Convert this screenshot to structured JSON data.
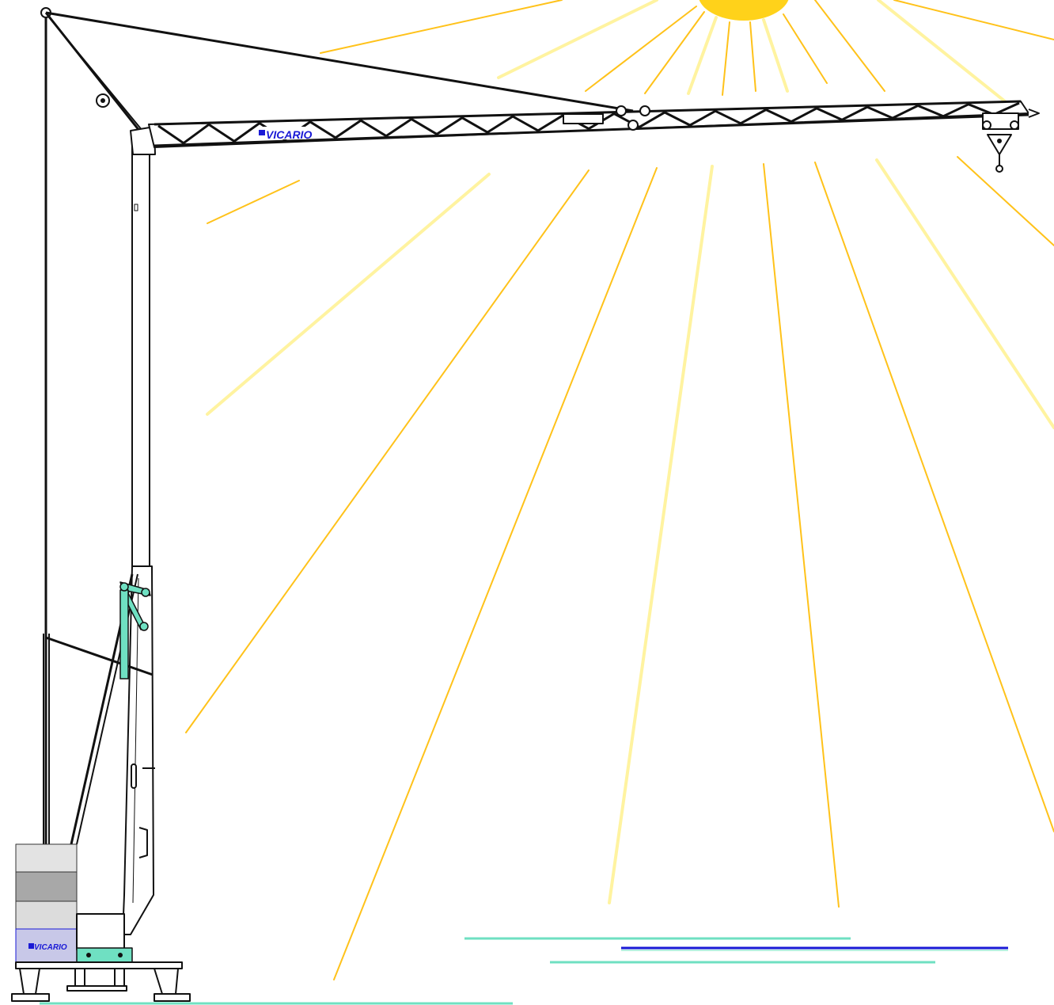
{
  "brand": {
    "jib_logo": "VICARIO",
    "ballast_logo": "VICARIO",
    "logo_color": "#1a1ad6"
  },
  "colors": {
    "sun": "#ffd21a",
    "ray": "#ffc21a",
    "ray_light": "#fff3a0",
    "structure": "#111111",
    "accent_teal": "#6fe0c2",
    "ballast_light": "#dcdcdc",
    "ballast_dark": "#a8a8a8",
    "ground_blue": "#1a1ad6"
  },
  "icons": {
    "sun": "sun-icon",
    "crane": "tower-crane-icon",
    "hook": "hook-icon"
  }
}
